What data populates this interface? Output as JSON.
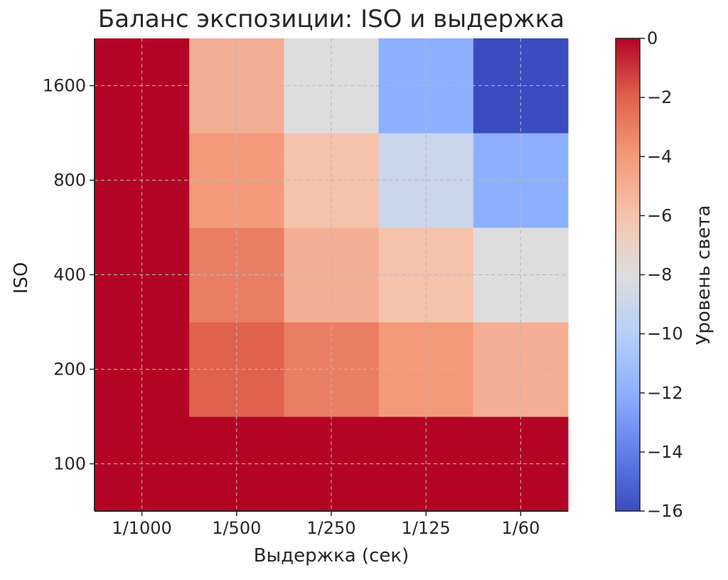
{
  "chart_data": {
    "type": "heatmap",
    "title": "Баланс экспозиции: ISO и выдержка",
    "xlabel": "Выдержка (сек)",
    "ylabel": "ISO",
    "x_categories": [
      "1/1000",
      "1/500",
      "1/250",
      "1/125",
      "1/60"
    ],
    "y_categories": [
      "100",
      "200",
      "400",
      "800",
      "1600"
    ],
    "values": [
      [
        0,
        0,
        0,
        0,
        0
      ],
      [
        0,
        -2,
        -3,
        -4,
        -5
      ],
      [
        0,
        -3,
        -5,
        -6,
        -8
      ],
      [
        0,
        -4,
        -6,
        -9,
        -12
      ],
      [
        0,
        -5,
        -8,
        -12,
        -16
      ]
    ],
    "colorbar": {
      "label": "Уровень света",
      "range": [
        -16,
        0
      ],
      "ticks": [
        0,
        -2,
        -4,
        -6,
        -8,
        -10,
        -12,
        -14,
        -16
      ],
      "tick_labels": [
        "0",
        "−2",
        "−4",
        "−6",
        "−8",
        "−10",
        "−12",
        "−14",
        "−16"
      ],
      "colormap": "coolwarm"
    },
    "grid": true
  }
}
